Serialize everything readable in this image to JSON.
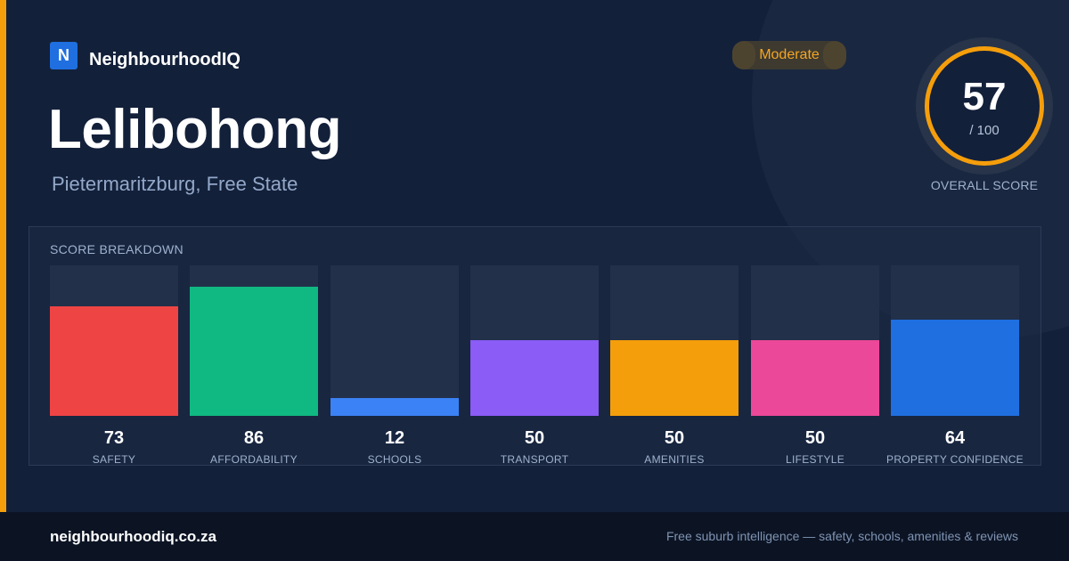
{
  "brand": {
    "logo_letter": "N",
    "name": "NeighbourhoodIQ"
  },
  "suburb": {
    "name": "Lelibohong",
    "location": "Pietermaritzburg, Free State"
  },
  "rating_badge": {
    "label": "Moderate"
  },
  "overall_score": {
    "value": "57",
    "max_label": "/ 100",
    "label": "OVERALL SCORE"
  },
  "breakdown": {
    "title": "SCORE BREAKDOWN",
    "scale_max": 100,
    "items": [
      {
        "label": "SAFETY",
        "value": 73,
        "color": "#ef4444"
      },
      {
        "label": "AFFORDABILITY",
        "value": 86,
        "color": "#10b981"
      },
      {
        "label": "SCHOOLS",
        "value": 12,
        "color": "#3b82f6"
      },
      {
        "label": "TRANSPORT",
        "value": 50,
        "color": "#8b5cf6"
      },
      {
        "label": "AMENITIES",
        "value": 50,
        "color": "#f59e0b"
      },
      {
        "label": "LIFESTYLE",
        "value": 50,
        "color": "#ec4899"
      },
      {
        "label": "PROPERTY CONFIDENCE",
        "value": 64,
        "color": "#1f6fe0"
      }
    ]
  },
  "footer": {
    "url": "neighbourhoodiq.co.za",
    "tagline": "Free suburb intelligence — safety, schools, amenities & reviews"
  },
  "colors": {
    "accent": "#f59e0b",
    "background": "#13203a",
    "footer_background": "#0c1424"
  }
}
